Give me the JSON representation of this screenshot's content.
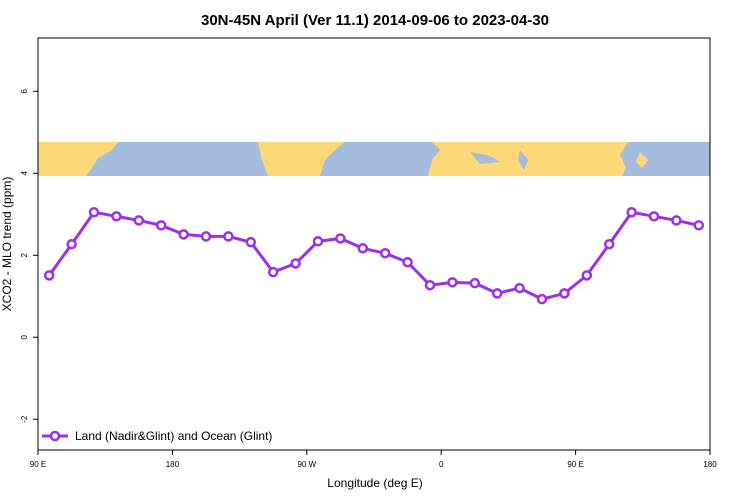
{
  "chart_data": {
    "type": "line",
    "title": "30N-45N April (Ver 11.1)   2014-09-06 to 2023-04-30",
    "x_label": "Longitude (deg E)",
    "y_label": "XCO2 - MLO trend (ppm)",
    "x": [
      97.5,
      112.5,
      127.5,
      142.5,
      157.5,
      172.5,
      187.5,
      202.5,
      217.5,
      232.5,
      247.5,
      262.5,
      277.5,
      292.5,
      307.5,
      322.5,
      337.5,
      352.5,
      367.5,
      382.5,
      397.5,
      412.5,
      427.5,
      442.5,
      457.5,
      472.5,
      487.5,
      502.5,
      517.5,
      532.5
    ],
    "series": [
      {
        "name": "Land (Nadir&Glint) and Ocean (Glint)",
        "color": "#9b30e8",
        "values": [
          1.51,
          2.27,
          3.05,
          2.95,
          2.85,
          2.73,
          2.51,
          2.46,
          2.46,
          2.32,
          1.59,
          1.8,
          2.34,
          2.41,
          2.17,
          2.05,
          1.83,
          1.27,
          1.34,
          1.32,
          1.07,
          1.2,
          0.93,
          1.07,
          1.51,
          2.27,
          3.05,
          2.95,
          2.85,
          2.73
        ]
      }
    ],
    "xlim": [
      90,
      540
    ],
    "xticks": [
      {
        "value": 90,
        "label": "90 E"
      },
      180,
      {
        "value": 270,
        "label": "90 W"
      },
      {
        "value": 360,
        "label": "0"
      },
      {
        "value": 450,
        "label": "90 E"
      },
      {
        "value": 540,
        "label": "180"
      }
    ],
    "ylim": [
      -2.75,
      7.3
    ],
    "yticks": [
      -2,
      0,
      2,
      4,
      6
    ],
    "legend": "bottom-left"
  }
}
